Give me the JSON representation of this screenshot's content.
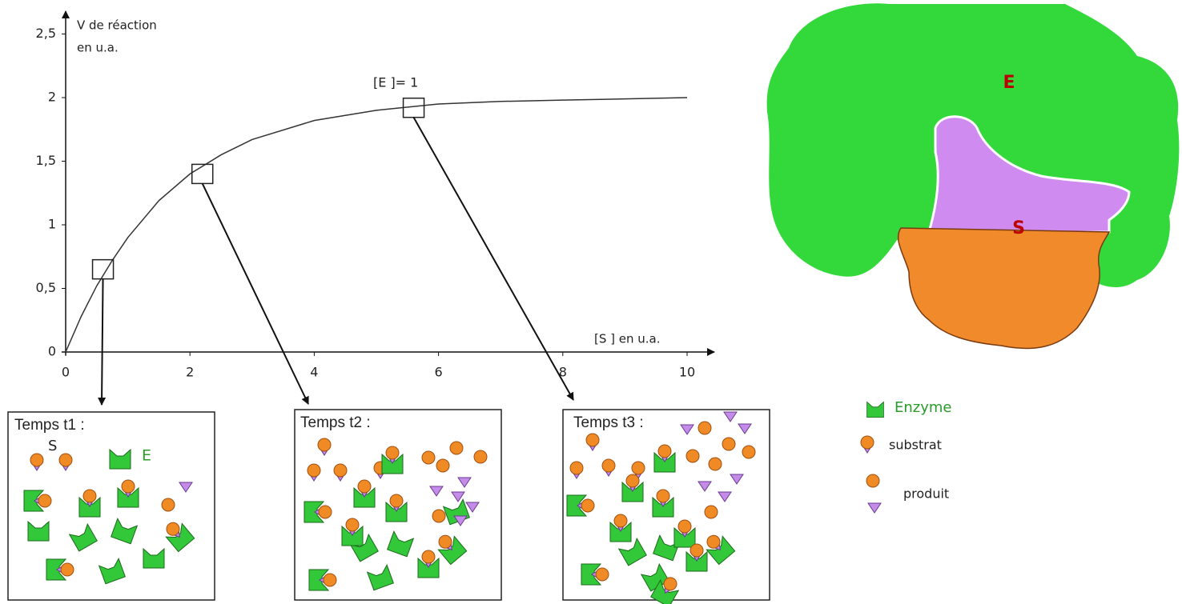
{
  "chart_data": {
    "type": "line",
    "y_label": [
      "V de réaction",
      "en u.a."
    ],
    "x_label": "[S ] en u.a.",
    "annotation": "[E ]= 1",
    "x": [
      0,
      0.25,
      0.5,
      0.75,
      1,
      1.5,
      2,
      2.5,
      3,
      4,
      5,
      6,
      7,
      8,
      9,
      10
    ],
    "values": [
      0,
      0.28,
      0.52,
      0.72,
      0.9,
      1.19,
      1.4,
      1.55,
      1.67,
      1.82,
      1.9,
      1.95,
      1.97,
      1.98,
      1.99,
      2
    ],
    "color": "#333333",
    "markers": {
      "x": [
        0.6,
        2.2,
        5.6
      ],
      "values": [
        0.65,
        1.4,
        1.92
      ]
    },
    "xlim": [
      0,
      10
    ],
    "ylim": [
      0,
      2.5
    ],
    "xticks": [
      0,
      2,
      4,
      6,
      8,
      10
    ],
    "yticks": [
      0,
      {
        "value": 0.5,
        "label": "0,5"
      },
      1,
      {
        "value": 1.5,
        "label": "1,5"
      },
      2,
      {
        "value": 2.5,
        "label": "2,5"
      }
    ]
  },
  "panels": [
    {
      "title": "Temps t1 :",
      "labels": [
        "S",
        "E"
      ]
    },
    {
      "title": "Temps t2 :"
    },
    {
      "title": "Temps t3 :"
    }
  ],
  "enzyme_diagram": {
    "enzyme_label": "E",
    "substrate_label": "S"
  },
  "legend": {
    "enzyme": "Enzyme",
    "substrate": "substrat",
    "product": "produit"
  }
}
